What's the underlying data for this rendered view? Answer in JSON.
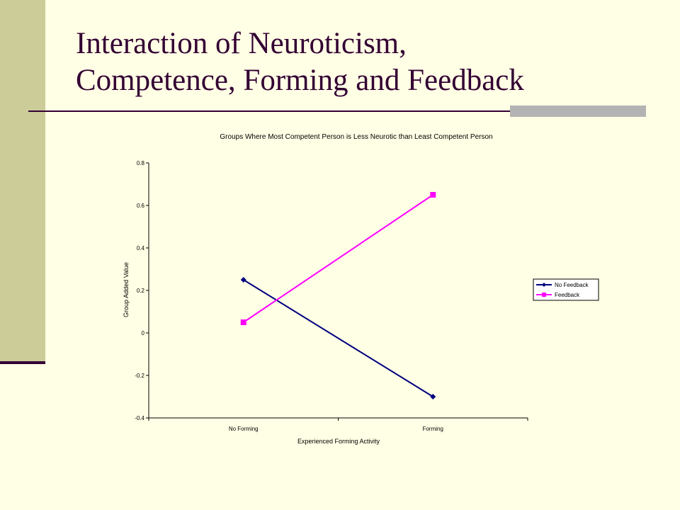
{
  "slide": {
    "title_line1": "Interaction of Neuroticism,",
    "title_line2": "Competence, Forming and Feedback"
  },
  "colors": {
    "background": "#ffffe5",
    "sidebar": "#cccc99",
    "title": "#330033",
    "accent": "#b3b3b3"
  },
  "chart_data": {
    "type": "line",
    "title": "Groups Where Most Competent Person is Less Neurotic than Least Competent Person",
    "xlabel": "Experienced Forming Activity",
    "ylabel": "Group Added Value",
    "categories": [
      "No Forming",
      "Forming"
    ],
    "ylim": [
      -0.4,
      0.8
    ],
    "yticks": [
      "0.8",
      "0.6",
      "0.4",
      "0.2",
      "0",
      "-0.2",
      "-0.4"
    ],
    "grid": false,
    "legend_position": "right",
    "series": [
      {
        "name": "No Feedback",
        "values": [
          0.25,
          -0.3
        ],
        "color": "#000080",
        "marker": "diamond"
      },
      {
        "name": "Feedback",
        "values": [
          0.05,
          0.65
        ],
        "color": "#ff00ff",
        "marker": "square"
      }
    ]
  }
}
